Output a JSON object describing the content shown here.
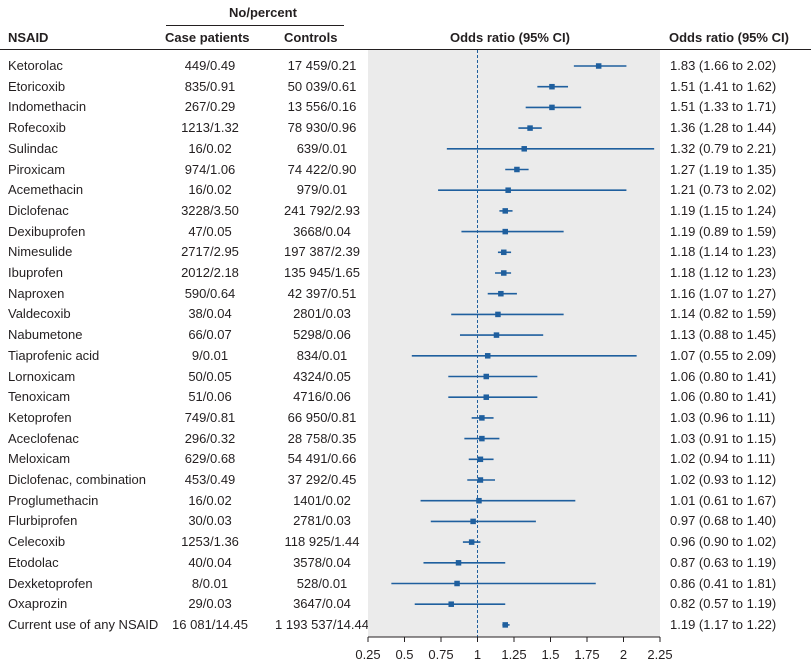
{
  "headers": {
    "group": "No/percent",
    "nsaid": "NSAID",
    "case": "Case patients",
    "controls": "Controls",
    "plot": "Odds ratio (95% CI)",
    "or_col": "Odds ratio (95% CI)"
  },
  "chart_data": {
    "type": "forest",
    "x_reference": 1,
    "xlim": [
      0.25,
      2.25
    ],
    "x_ticks": [
      0.25,
      0.5,
      0.75,
      1,
      1.25,
      1.5,
      1.75,
      2,
      2.25
    ],
    "x_tick_labels": [
      "0.25",
      "0.5",
      "0.75",
      "1",
      "1.25",
      "1.5",
      "1.75",
      "2",
      "2.25"
    ],
    "marker_color": "#1f5f9e",
    "plot_background": "#ebebeb",
    "rows": [
      {
        "name": "Ketorolac",
        "case": "449/0.49",
        "controls": "17 459/0.21",
        "or": 1.83,
        "lo": 1.66,
        "hi": 2.02,
        "label": "1.83 (1.66 to 2.02)"
      },
      {
        "name": "Etoricoxib",
        "case": "835/0.91",
        "controls": "50 039/0.61",
        "or": 1.51,
        "lo": 1.41,
        "hi": 1.62,
        "label": "1.51 (1.41 to 1.62)"
      },
      {
        "name": "Indomethacin",
        "case": "267/0.29",
        "controls": "13 556/0.16",
        "or": 1.51,
        "lo": 1.33,
        "hi": 1.71,
        "label": "1.51 (1.33 to 1.71)"
      },
      {
        "name": "Rofecoxib",
        "case": "1213/1.32",
        "controls": "78 930/0.96",
        "or": 1.36,
        "lo": 1.28,
        "hi": 1.44,
        "label": "1.36 (1.28 to 1.44)"
      },
      {
        "name": "Sulindac",
        "case": "16/0.02",
        "controls": "639/0.01",
        "or": 1.32,
        "lo": 0.79,
        "hi": 2.21,
        "label": "1.32 (0.79 to 2.21)"
      },
      {
        "name": "Piroxicam",
        "case": "974/1.06",
        "controls": "74 422/0.90",
        "or": 1.27,
        "lo": 1.19,
        "hi": 1.35,
        "label": "1.27 (1.19 to 1.35)"
      },
      {
        "name": "Acemethacin",
        "case": "16/0.02",
        "controls": "979/0.01",
        "or": 1.21,
        "lo": 0.73,
        "hi": 2.02,
        "label": "1.21 (0.73 to 2.02)"
      },
      {
        "name": "Diclofenac",
        "case": "3228/3.50",
        "controls": "241 792/2.93",
        "or": 1.19,
        "lo": 1.15,
        "hi": 1.24,
        "label": "1.19 (1.15 to 1.24)"
      },
      {
        "name": "Dexibuprofen",
        "case": "47/0.05",
        "controls": "3668/0.04",
        "or": 1.19,
        "lo": 0.89,
        "hi": 1.59,
        "label": "1.19 (0.89 to 1.59)"
      },
      {
        "name": "Nimesulide",
        "case": "2717/2.95",
        "controls": "197 387/2.39",
        "or": 1.18,
        "lo": 1.14,
        "hi": 1.23,
        "label": "1.18 (1.14 to 1.23)"
      },
      {
        "name": "Ibuprofen",
        "case": "2012/2.18",
        "controls": "135 945/1.65",
        "or": 1.18,
        "lo": 1.12,
        "hi": 1.23,
        "label": "1.18 (1.12 to 1.23)"
      },
      {
        "name": "Naproxen",
        "case": "590/0.64",
        "controls": "42 397/0.51",
        "or": 1.16,
        "lo": 1.07,
        "hi": 1.27,
        "label": "1.16 (1.07 to 1.27)"
      },
      {
        "name": "Valdecoxib",
        "case": "38/0.04",
        "controls": "2801/0.03",
        "or": 1.14,
        "lo": 0.82,
        "hi": 1.59,
        "label": "1.14 (0.82 to 1.59)"
      },
      {
        "name": "Nabumetone",
        "case": "66/0.07",
        "controls": "5298/0.06",
        "or": 1.13,
        "lo": 0.88,
        "hi": 1.45,
        "label": "1.13 (0.88 to 1.45)"
      },
      {
        "name": "Tiaprofenic acid",
        "case": "9/0.01",
        "controls": "834/0.01",
        "or": 1.07,
        "lo": 0.55,
        "hi": 2.09,
        "label": "1.07 (0.55 to 2.09)"
      },
      {
        "name": "Lornoxicam",
        "case": "50/0.05",
        "controls": "4324/0.05",
        "or": 1.06,
        "lo": 0.8,
        "hi": 1.41,
        "label": "1.06 (0.80 to 1.41)"
      },
      {
        "name": "Tenoxicam",
        "case": "51/0.06",
        "controls": "4716/0.06",
        "or": 1.06,
        "lo": 0.8,
        "hi": 1.41,
        "label": "1.06 (0.80 to 1.41)"
      },
      {
        "name": "Ketoprofen",
        "case": "749/0.81",
        "controls": "66 950/0.81",
        "or": 1.03,
        "lo": 0.96,
        "hi": 1.11,
        "label": "1.03 (0.96 to 1.11)"
      },
      {
        "name": "Aceclofenac",
        "case": "296/0.32",
        "controls": "28 758/0.35",
        "or": 1.03,
        "lo": 0.91,
        "hi": 1.15,
        "label": "1.03 (0.91 to 1.15)"
      },
      {
        "name": "Meloxicam",
        "case": "629/0.68",
        "controls": "54 491/0.66",
        "or": 1.02,
        "lo": 0.94,
        "hi": 1.11,
        "label": "1.02 (0.94 to 1.11)"
      },
      {
        "name": "Diclofenac, combination",
        "case": "453/0.49",
        "controls": "37 292/0.45",
        "or": 1.02,
        "lo": 0.93,
        "hi": 1.12,
        "label": "1.02 (0.93 to 1.12)"
      },
      {
        "name": "Proglumethacin",
        "case": "16/0.02",
        "controls": "1401/0.02",
        "or": 1.01,
        "lo": 0.61,
        "hi": 1.67,
        "label": "1.01 (0.61 to 1.67)"
      },
      {
        "name": "Flurbiprofen",
        "case": "30/0.03",
        "controls": "2781/0.03",
        "or": 0.97,
        "lo": 0.68,
        "hi": 1.4,
        "label": "0.97 (0.68 to 1.40)"
      },
      {
        "name": "Celecoxib",
        "case": "1253/1.36",
        "controls": "118 925/1.44",
        "or": 0.96,
        "lo": 0.9,
        "hi": 1.02,
        "label": "0.96 (0.90 to 1.02)"
      },
      {
        "name": "Etodolac",
        "case": "40/0.04",
        "controls": "3578/0.04",
        "or": 0.87,
        "lo": 0.63,
        "hi": 1.19,
        "label": "0.87 (0.63 to 1.19)"
      },
      {
        "name": "Dexketoprofen",
        "case": "8/0.01",
        "controls": "528/0.01",
        "or": 0.86,
        "lo": 0.41,
        "hi": 1.81,
        "label": "0.86 (0.41 to 1.81)"
      },
      {
        "name": "Oxaprozin",
        "case": "29/0.03",
        "controls": "3647/0.04",
        "or": 0.82,
        "lo": 0.57,
        "hi": 1.19,
        "label": "0.82 (0.57 to 1.19)"
      },
      {
        "name": "Current use of any NSAID",
        "case": "16 081/14.45",
        "controls": "1 193 537/14.44",
        "or": 1.19,
        "lo": 1.17,
        "hi": 1.22,
        "label": "1.19 (1.17 to 1.22)"
      }
    ]
  }
}
